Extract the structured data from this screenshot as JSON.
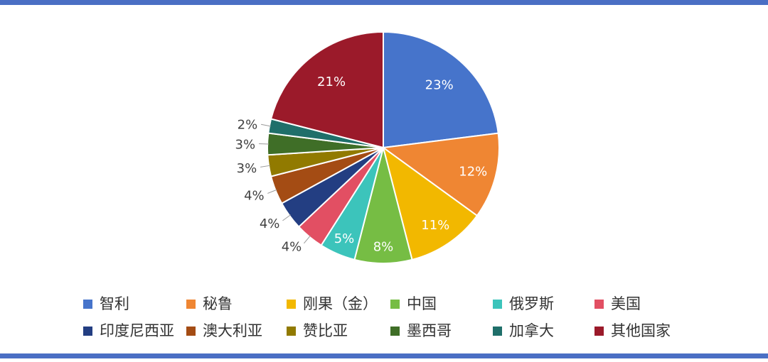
{
  "chart_data": {
    "type": "pie",
    "title": "",
    "slices": [
      {
        "name": "智利",
        "value": 23,
        "label": "23%",
        "color": "#4674cb"
      },
      {
        "name": "秘鲁",
        "value": 12,
        "label": "12%",
        "color": "#ef8633"
      },
      {
        "name": "刚果（金）",
        "value": 11,
        "label": "11%",
        "color": "#f2b800"
      },
      {
        "name": "中国",
        "value": 8,
        "label": "8%",
        "color": "#76bd44"
      },
      {
        "name": "俄罗斯",
        "value": 5,
        "label": "5%",
        "color": "#3cc4bb"
      },
      {
        "name": "美国",
        "value": 4,
        "label": "4%",
        "color": "#e24f63"
      },
      {
        "name": "印度尼西亚",
        "value": 4,
        "label": "4%",
        "color": "#233e82"
      },
      {
        "name": "澳大利亚",
        "value": 4,
        "label": "4%",
        "color": "#a44c14"
      },
      {
        "name": "赞比亚",
        "value": 3,
        "label": "3%",
        "color": "#917a00"
      },
      {
        "name": "墨西哥",
        "value": 3,
        "label": "3%",
        "color": "#3f6e27"
      },
      {
        "name": "加拿大",
        "value": 2,
        "label": "2%",
        "color": "#1f6f6a"
      },
      {
        "name": "其他国家",
        "value": 21,
        "label": "21%",
        "color": "#9b1a2a"
      }
    ],
    "legend_position": "bottom"
  }
}
